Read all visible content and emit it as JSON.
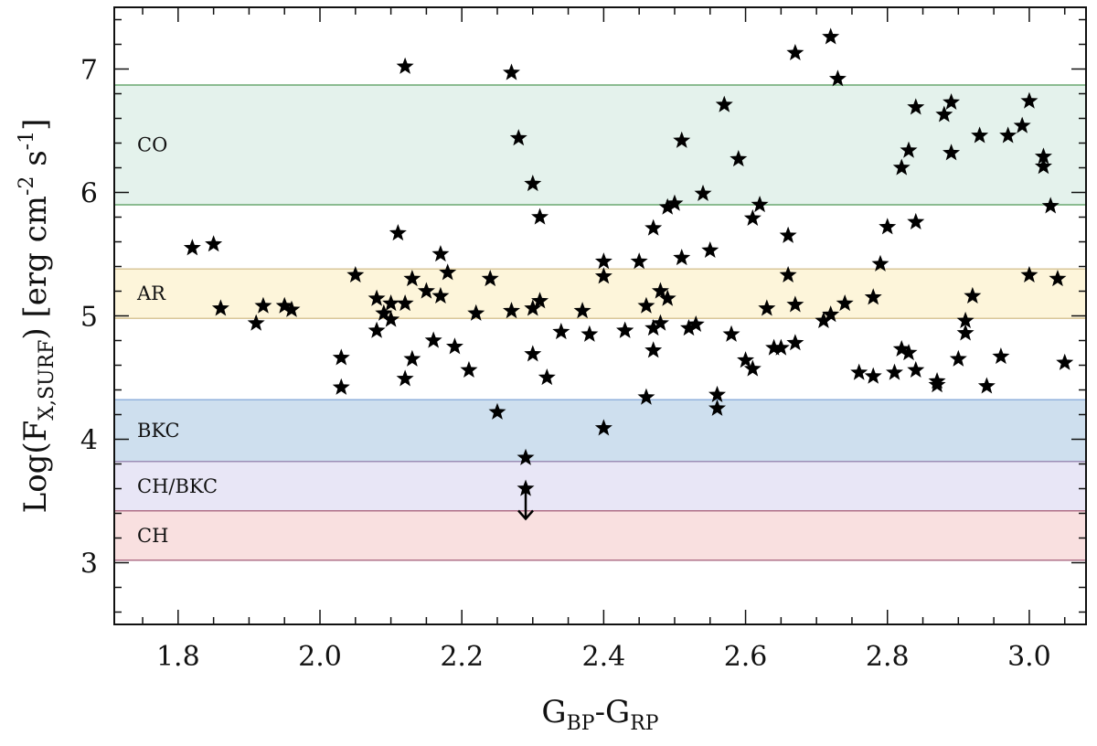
{
  "chart_data": {
    "type": "scatter",
    "title": "",
    "xlabel": {
      "main": "G",
      "sub1": "BP",
      "mid": "-G",
      "sub2": "RP"
    },
    "ylabel": {
      "pre": "Log(F",
      "sub": "X,SURF",
      "post": ") [erg cm",
      "sup1": "-2",
      "mid": " s",
      "sup2": "-1",
      "end": "]"
    },
    "xlim": [
      1.71,
      3.08
    ],
    "ylim": [
      2.5,
      7.5
    ],
    "xticks": [
      {
        "value": 1.8,
        "label": "1.8"
      },
      {
        "value": 2.0,
        "label": "2.0"
      },
      {
        "value": 2.2,
        "label": "2.2"
      },
      {
        "value": 2.4,
        "label": "2.4"
      },
      {
        "value": 2.6,
        "label": "2.6"
      },
      {
        "value": 2.8,
        "label": "2.8"
      },
      {
        "value": 3.0,
        "label": "3.0"
      }
    ],
    "yticks": [
      {
        "value": 3,
        "label": "3"
      },
      {
        "value": 4,
        "label": "4"
      },
      {
        "value": 5,
        "label": "5"
      },
      {
        "value": 6,
        "label": "6"
      },
      {
        "value": 7,
        "label": "7"
      }
    ],
    "bands": [
      {
        "label": "CO",
        "y0": 5.9,
        "y1": 6.87,
        "fill": "#e4f2ec",
        "line": "#6aa870"
      },
      {
        "label": "AR",
        "y0": 4.98,
        "y1": 5.38,
        "fill": "#fdf5da",
        "line": "#d9c79a"
      },
      {
        "label": "BKC",
        "y0": 3.82,
        "y1": 4.32,
        "fill": "#cedfee",
        "line": "#8fb0dc"
      },
      {
        "label": "CH/BKC",
        "y0": 3.42,
        "y1": 3.82,
        "fill": "#e8e6f6",
        "line": "#9b8fb7"
      },
      {
        "label": "CH",
        "y0": 3.02,
        "y1": 3.42,
        "fill": "#f9e0e0",
        "line": "#b07088"
      }
    ],
    "marker": "star",
    "marker_color": "#000000",
    "points": [
      [
        1.82,
        5.55
      ],
      [
        1.85,
        5.58
      ],
      [
        1.86,
        5.06
      ],
      [
        1.91,
        4.94
      ],
      [
        1.92,
        5.08
      ],
      [
        1.95,
        5.08
      ],
      [
        1.96,
        5.05
      ],
      [
        2.03,
        4.66
      ],
      [
        2.03,
        4.42
      ],
      [
        2.05,
        5.33
      ],
      [
        2.08,
        4.88
      ],
      [
        2.08,
        5.14
      ],
      [
        2.09,
        5.02
      ],
      [
        2.1,
        4.97
      ],
      [
        2.1,
        5.1
      ],
      [
        2.11,
        5.67
      ],
      [
        2.12,
        5.1
      ],
      [
        2.12,
        4.49
      ],
      [
        2.12,
        7.02
      ],
      [
        2.13,
        4.65
      ],
      [
        2.13,
        5.3
      ],
      [
        2.15,
        5.2
      ],
      [
        2.16,
        4.8
      ],
      [
        2.17,
        5.16
      ],
      [
        2.17,
        5.5
      ],
      [
        2.18,
        5.35
      ],
      [
        2.19,
        4.75
      ],
      [
        2.21,
        4.56
      ],
      [
        2.22,
        5.02
      ],
      [
        2.24,
        5.3
      ],
      [
        2.25,
        4.22
      ],
      [
        2.27,
        6.97
      ],
      [
        2.27,
        5.04
      ],
      [
        2.28,
        6.44
      ],
      [
        2.29,
        3.85
      ],
      [
        2.3,
        6.07
      ],
      [
        2.3,
        5.06
      ],
      [
        2.3,
        4.69
      ],
      [
        2.31,
        5.12
      ],
      [
        2.31,
        5.8
      ],
      [
        2.32,
        4.5
      ],
      [
        2.34,
        4.87
      ],
      [
        2.37,
        5.04
      ],
      [
        2.38,
        4.85
      ],
      [
        2.4,
        4.09
      ],
      [
        2.4,
        5.44
      ],
      [
        2.4,
        5.32
      ],
      [
        2.43,
        4.88
      ],
      [
        2.43,
        4.88
      ],
      [
        2.45,
        5.44
      ],
      [
        2.46,
        4.34
      ],
      [
        2.46,
        5.08
      ],
      [
        2.47,
        4.72
      ],
      [
        2.47,
        4.9
      ],
      [
        2.47,
        5.71
      ],
      [
        2.48,
        4.94
      ],
      [
        2.48,
        5.2
      ],
      [
        2.49,
        5.88
      ],
      [
        2.49,
        5.14
      ],
      [
        2.5,
        5.91
      ],
      [
        2.51,
        5.47
      ],
      [
        2.51,
        6.42
      ],
      [
        2.52,
        4.9
      ],
      [
        2.53,
        4.93
      ],
      [
        2.54,
        5.99
      ],
      [
        2.55,
        5.53
      ],
      [
        2.56,
        4.36
      ],
      [
        2.56,
        4.25
      ],
      [
        2.57,
        6.71
      ],
      [
        2.58,
        4.85
      ],
      [
        2.59,
        6.27
      ],
      [
        2.6,
        4.64
      ],
      [
        2.61,
        5.79
      ],
      [
        2.61,
        4.57
      ],
      [
        2.62,
        5.9
      ],
      [
        2.63,
        5.06
      ],
      [
        2.64,
        4.74
      ],
      [
        2.65,
        4.74
      ],
      [
        2.66,
        5.65
      ],
      [
        2.66,
        5.33
      ],
      [
        2.67,
        4.78
      ],
      [
        2.67,
        5.09
      ],
      [
        2.67,
        7.13
      ],
      [
        2.71,
        4.96
      ],
      [
        2.72,
        5.01
      ],
      [
        2.72,
        7.26
      ],
      [
        2.73,
        6.92
      ],
      [
        2.74,
        5.1
      ],
      [
        2.76,
        4.54
      ],
      [
        2.78,
        5.15
      ],
      [
        2.78,
        4.51
      ],
      [
        2.79,
        5.42
      ],
      [
        2.8,
        5.72
      ],
      [
        2.81,
        4.54
      ],
      [
        2.82,
        6.2
      ],
      [
        2.82,
        4.73
      ],
      [
        2.83,
        4.7
      ],
      [
        2.83,
        6.34
      ],
      [
        2.84,
        5.76
      ],
      [
        2.84,
        6.69
      ],
      [
        2.84,
        4.56
      ],
      [
        2.87,
        4.47
      ],
      [
        2.87,
        4.44
      ],
      [
        2.88,
        6.63
      ],
      [
        2.89,
        6.73
      ],
      [
        2.89,
        6.32
      ],
      [
        2.9,
        4.65
      ],
      [
        2.91,
        4.96
      ],
      [
        2.91,
        4.86
      ],
      [
        2.92,
        5.16
      ],
      [
        2.93,
        6.46
      ],
      [
        2.94,
        4.43
      ],
      [
        2.96,
        4.67
      ],
      [
        2.97,
        6.46
      ],
      [
        2.99,
        6.54
      ],
      [
        3.0,
        6.74
      ],
      [
        3.0,
        5.33
      ],
      [
        3.02,
        6.21
      ],
      [
        3.02,
        6.29
      ],
      [
        3.03,
        5.89
      ],
      [
        3.04,
        5.3
      ],
      [
        3.05,
        4.62
      ]
    ],
    "upper_limits": [
      {
        "x": 2.29,
        "y": 3.6
      }
    ]
  }
}
